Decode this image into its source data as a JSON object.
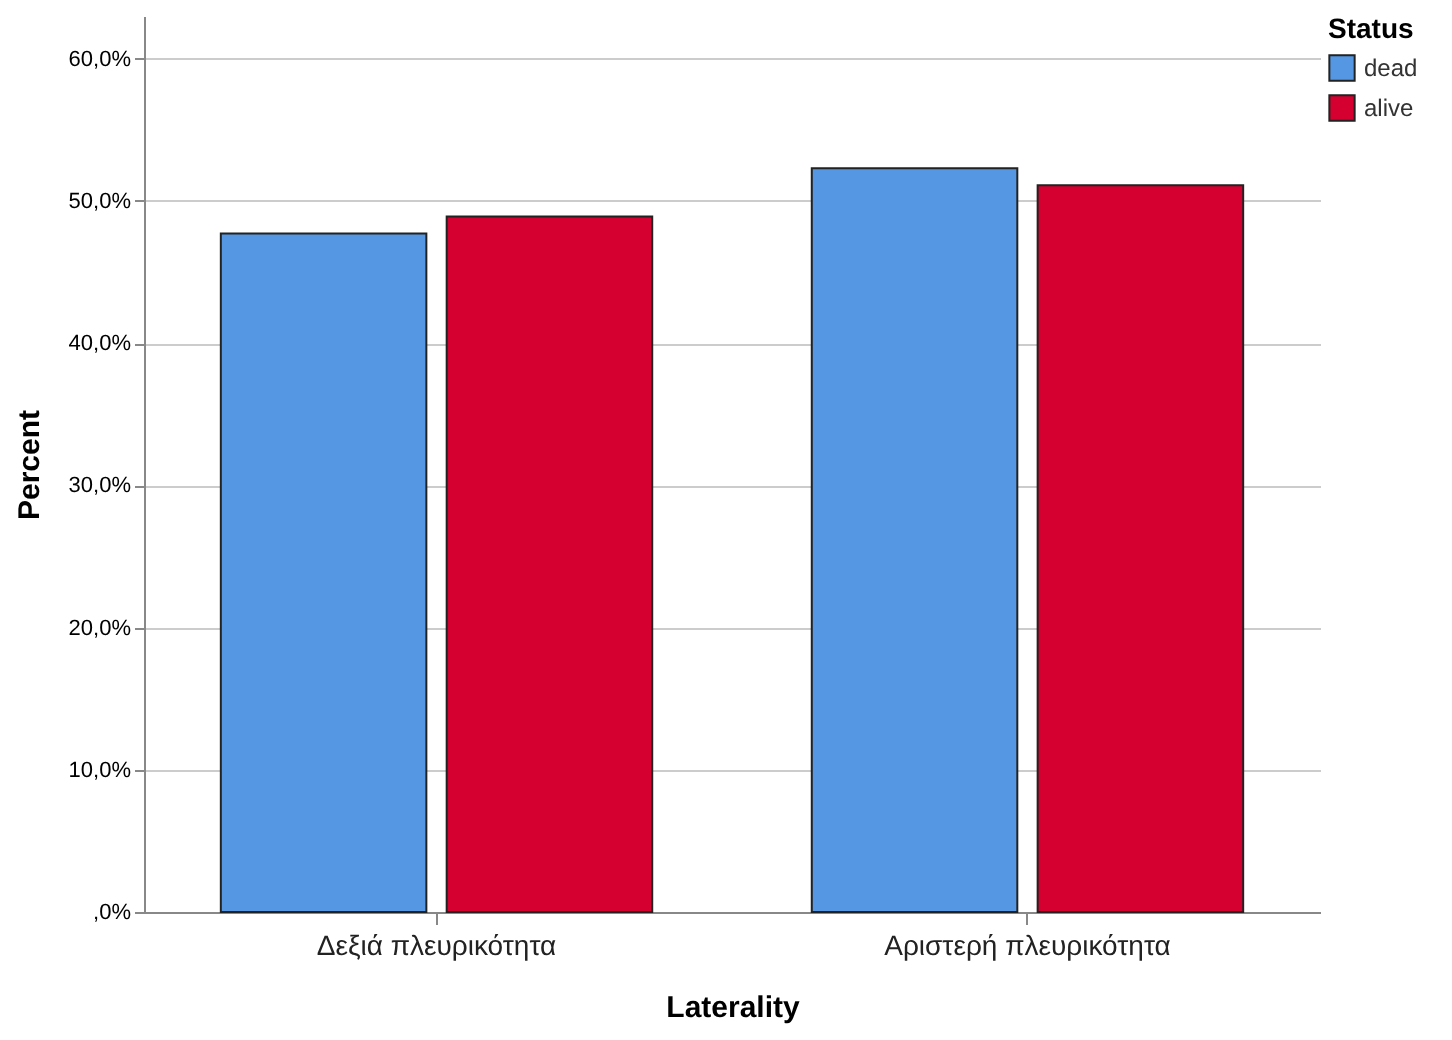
{
  "chart_data": {
    "type": "bar",
    "xlabel": "Laterality",
    "ylabel": "Percent",
    "legend_title": "Status",
    "categories": [
      "Δεξιά πλευρικότητα",
      "Αριστερή πλευρικότητα"
    ],
    "series": [
      {
        "name": "dead",
        "color": "#5597e3",
        "values": [
          47.7,
          52.3
        ]
      },
      {
        "name": "alive",
        "color": "#d5002f",
        "values": [
          48.9,
          51.1
        ]
      }
    ],
    "ylim": [
      0,
      63
    ],
    "yticks": [
      {
        "value": 0,
        "label": ",0%"
      },
      {
        "value": 10,
        "label": "10,0%"
      },
      {
        "value": 20,
        "label": "20,0%"
      },
      {
        "value": 30,
        "label": "30,0%"
      },
      {
        "value": 40,
        "label": "40,0%"
      },
      {
        "value": 50,
        "label": "50,0%"
      },
      {
        "value": 60,
        "label": "60,0%"
      }
    ],
    "grid": "y",
    "legend": "top right"
  }
}
